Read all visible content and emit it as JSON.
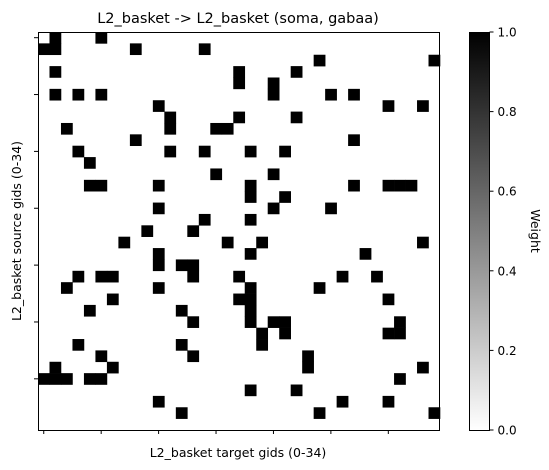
{
  "chart_data": {
    "type": "heatmap",
    "title": "L2_basket -> L2_basket (soma, gabaa)",
    "xlabel": "L2_basket target gids (0-34)",
    "ylabel": "L2_basket source gids (0-34)",
    "n_rows": 35,
    "n_cols": 35,
    "value_range": [
      0,
      1
    ],
    "colormap": "binary (white = 0, black = 1)",
    "colorbar": {
      "label": "Weight",
      "ticks": [
        "0.0",
        "0.2",
        "0.4",
        "0.6",
        "0.8",
        "1.0"
      ],
      "tick_values": [
        0,
        0.2,
        0.4,
        0.6,
        0.8,
        1.0
      ]
    },
    "x_tick_labels_visible": false,
    "y_tick_labels_visible": false,
    "ones": [
      [
        0,
        1
      ],
      [
        0,
        5
      ],
      [
        1,
        0
      ],
      [
        1,
        1
      ],
      [
        1,
        8
      ],
      [
        1,
        14
      ],
      [
        2,
        24
      ],
      [
        2,
        34
      ],
      [
        3,
        1
      ],
      [
        3,
        17
      ],
      [
        3,
        22
      ],
      [
        4,
        17
      ],
      [
        4,
        20
      ],
      [
        5,
        1
      ],
      [
        5,
        3
      ],
      [
        5,
        5
      ],
      [
        5,
        20
      ],
      [
        5,
        25
      ],
      [
        5,
        27
      ],
      [
        6,
        10
      ],
      [
        6,
        30
      ],
      [
        6,
        33
      ],
      [
        7,
        11
      ],
      [
        7,
        17
      ],
      [
        7,
        22
      ],
      [
        8,
        2
      ],
      [
        8,
        11
      ],
      [
        8,
        15
      ],
      [
        8,
        16
      ],
      [
        9,
        8
      ],
      [
        9,
        27
      ],
      [
        10,
        3
      ],
      [
        10,
        11
      ],
      [
        10,
        14
      ],
      [
        10,
        18
      ],
      [
        10,
        21
      ],
      [
        11,
        4
      ],
      [
        12,
        15
      ],
      [
        12,
        20
      ],
      [
        13,
        4
      ],
      [
        13,
        5
      ],
      [
        13,
        10
      ],
      [
        13,
        18
      ],
      [
        13,
        27
      ],
      [
        13,
        30
      ],
      [
        13,
        31
      ],
      [
        13,
        32
      ],
      [
        14,
        18
      ],
      [
        14,
        21
      ],
      [
        15,
        10
      ],
      [
        15,
        20
      ],
      [
        15,
        25
      ],
      [
        16,
        14
      ],
      [
        16,
        18
      ],
      [
        17,
        9
      ],
      [
        17,
        13
      ],
      [
        18,
        7
      ],
      [
        18,
        16
      ],
      [
        18,
        19
      ],
      [
        18,
        33
      ],
      [
        19,
        10
      ],
      [
        19,
        18
      ],
      [
        19,
        28
      ],
      [
        20,
        10
      ],
      [
        20,
        12
      ],
      [
        20,
        13
      ],
      [
        21,
        3
      ],
      [
        21,
        5
      ],
      [
        21,
        6
      ],
      [
        21,
        13
      ],
      [
        21,
        17
      ],
      [
        21,
        26
      ],
      [
        21,
        29
      ],
      [
        22,
        2
      ],
      [
        22,
        10
      ],
      [
        22,
        18
      ],
      [
        22,
        24
      ],
      [
        23,
        6
      ],
      [
        23,
        17
      ],
      [
        23,
        18
      ],
      [
        23,
        30
      ],
      [
        24,
        4
      ],
      [
        24,
        12
      ],
      [
        24,
        18
      ],
      [
        25,
        13
      ],
      [
        25,
        18
      ],
      [
        25,
        20
      ],
      [
        25,
        21
      ],
      [
        25,
        31
      ],
      [
        26,
        19
      ],
      [
        26,
        21
      ],
      [
        26,
        30
      ],
      [
        26,
        31
      ],
      [
        27,
        3
      ],
      [
        27,
        12
      ],
      [
        27,
        19
      ],
      [
        28,
        5
      ],
      [
        28,
        13
      ],
      [
        28,
        23
      ],
      [
        29,
        1
      ],
      [
        29,
        6
      ],
      [
        29,
        23
      ],
      [
        29,
        33
      ],
      [
        30,
        0
      ],
      [
        30,
        1
      ],
      [
        30,
        2
      ],
      [
        30,
        4
      ],
      [
        30,
        5
      ],
      [
        30,
        31
      ],
      [
        31,
        18
      ],
      [
        31,
        22
      ],
      [
        32,
        10
      ],
      [
        32,
        26
      ],
      [
        32,
        30
      ],
      [
        33,
        12
      ],
      [
        33,
        24
      ],
      [
        33,
        34
      ]
    ]
  }
}
